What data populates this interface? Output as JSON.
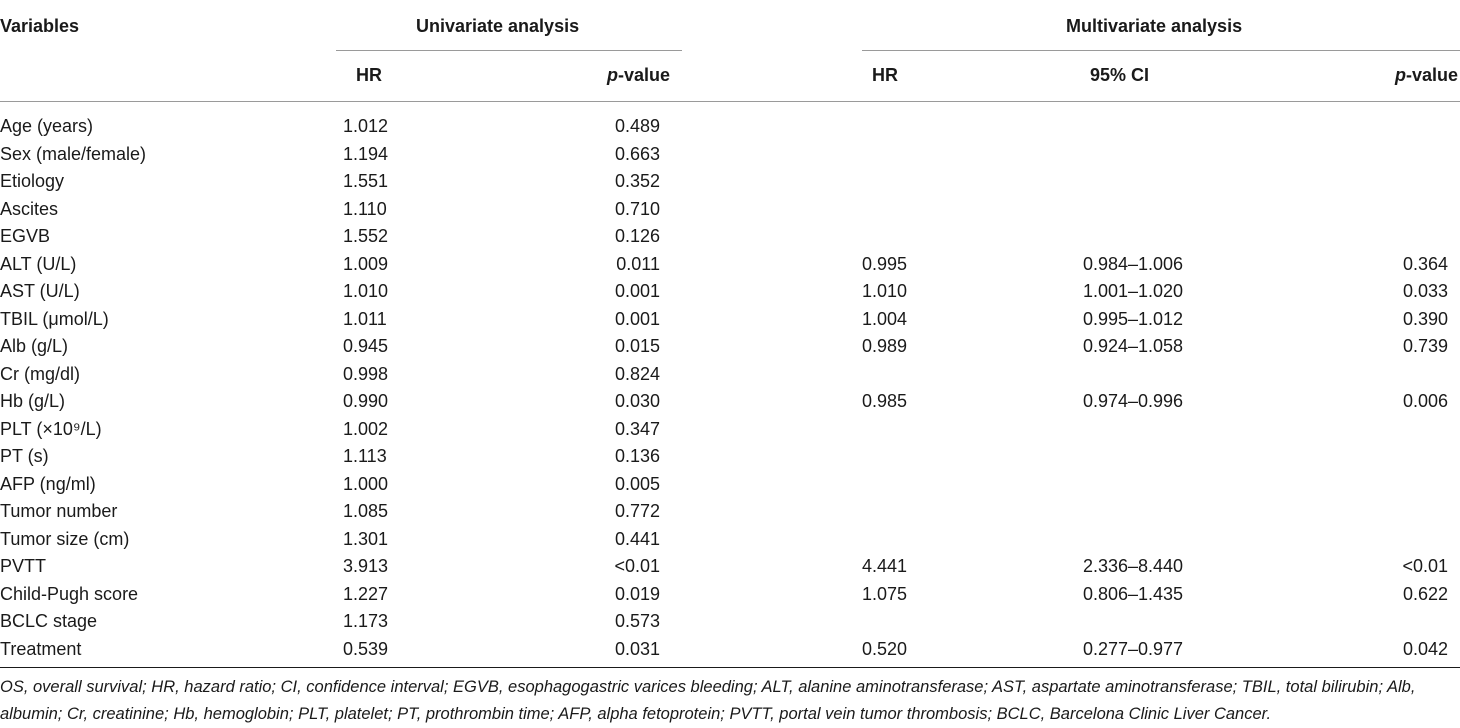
{
  "header": {
    "variables": "Variables",
    "univariate": "Univariate analysis",
    "multivariate": "Multivariate analysis",
    "uni_hr": "HR",
    "uni_p_italic": "p",
    "uni_p_rest": "-value",
    "multi_hr": "HR",
    "multi_ci": "95% CI",
    "multi_p_italic": "p",
    "multi_p_rest": "-value"
  },
  "rows": [
    {
      "variable": "Age (years)",
      "uni_hr": "1.012",
      "uni_p": "0.489",
      "multi_hr": "",
      "multi_ci": "",
      "multi_p": ""
    },
    {
      "variable": "Sex (male/female)",
      "uni_hr": "1.194",
      "uni_p": "0.663",
      "multi_hr": "",
      "multi_ci": "",
      "multi_p": ""
    },
    {
      "variable": "Etiology",
      "uni_hr": "1.551",
      "uni_p": "0.352",
      "multi_hr": "",
      "multi_ci": "",
      "multi_p": ""
    },
    {
      "variable": "Ascites",
      "uni_hr": "1.110",
      "uni_p": "0.710",
      "multi_hr": "",
      "multi_ci": "",
      "multi_p": ""
    },
    {
      "variable": "EGVB",
      "uni_hr": "1.552",
      "uni_p": "0.126",
      "multi_hr": "",
      "multi_ci": "",
      "multi_p": ""
    },
    {
      "variable": "ALT (U/L)",
      "uni_hr": "1.009",
      "uni_p": "0.011",
      "multi_hr": "0.995",
      "multi_ci": "0.984–1.006",
      "multi_p": "0.364"
    },
    {
      "variable": "AST (U/L)",
      "uni_hr": "1.010",
      "uni_p": "0.001",
      "multi_hr": "1.010",
      "multi_ci": "1.001–1.020",
      "multi_p": "0.033"
    },
    {
      "variable": "TBIL (μmol/L)",
      "uni_hr": "1.011",
      "uni_p": "0.001",
      "multi_hr": "1.004",
      "multi_ci": "0.995–1.012",
      "multi_p": "0.390"
    },
    {
      "variable": "Alb (g/L)",
      "uni_hr": "0.945",
      "uni_p": "0.015",
      "multi_hr": "0.989",
      "multi_ci": "0.924–1.058",
      "multi_p": "0.739"
    },
    {
      "variable": "Cr (mg/dl)",
      "uni_hr": "0.998",
      "uni_p": "0.824",
      "multi_hr": "",
      "multi_ci": "",
      "multi_p": ""
    },
    {
      "variable": "Hb (g/L)",
      "uni_hr": "0.990",
      "uni_p": "0.030",
      "multi_hr": "0.985",
      "multi_ci": "0.974–0.996",
      "multi_p": "0.006"
    },
    {
      "variable": "PLT (×10⁹/L)",
      "uni_hr": "1.002",
      "uni_p": "0.347",
      "multi_hr": "",
      "multi_ci": "",
      "multi_p": ""
    },
    {
      "variable": "PT (s)",
      "uni_hr": "1.113",
      "uni_p": "0.136",
      "multi_hr": "",
      "multi_ci": "",
      "multi_p": ""
    },
    {
      "variable": "AFP (ng/ml)",
      "uni_hr": "1.000",
      "uni_p": "0.005",
      "multi_hr": "",
      "multi_ci": "",
      "multi_p": ""
    },
    {
      "variable": "Tumor number",
      "uni_hr": "1.085",
      "uni_p": "0.772",
      "multi_hr": "",
      "multi_ci": "",
      "multi_p": ""
    },
    {
      "variable": "Tumor size (cm)",
      "uni_hr": "1.301",
      "uni_p": "0.441",
      "multi_hr": "",
      "multi_ci": "",
      "multi_p": ""
    },
    {
      "variable": "PVTT",
      "uni_hr": "3.913",
      "uni_p": "<0.01",
      "multi_hr": "4.441",
      "multi_ci": "2.336–8.440",
      "multi_p": "<0.01"
    },
    {
      "variable": "Child-Pugh score",
      "uni_hr": "1.227",
      "uni_p": "0.019",
      "multi_hr": "1.075",
      "multi_ci": "0.806–1.435",
      "multi_p": "0.622"
    },
    {
      "variable": "BCLC stage",
      "uni_hr": "1.173",
      "uni_p": "0.573",
      "multi_hr": "",
      "multi_ci": "",
      "multi_p": ""
    },
    {
      "variable": "Treatment",
      "uni_hr": "0.539",
      "uni_p": "0.031",
      "multi_hr": "0.520",
      "multi_ci": "0.277–0.977",
      "multi_p": "0.042"
    }
  ],
  "footnote": "OS, overall survival; HR, hazard ratio; CI, confidence interval; EGVB, esophagogastric varices bleeding; ALT, alanine aminotransferase; AST, aspartate aminotransferase; TBIL, total bilirubin; Alb, albumin; Cr, creatinine; Hb, hemoglobin; PLT, platelet; PT, prothrombin time; AFP, alpha fetoprotein; PVTT, portal vein tumor thrombosis; BCLC, Barcelona Clinic Liver Cancer."
}
